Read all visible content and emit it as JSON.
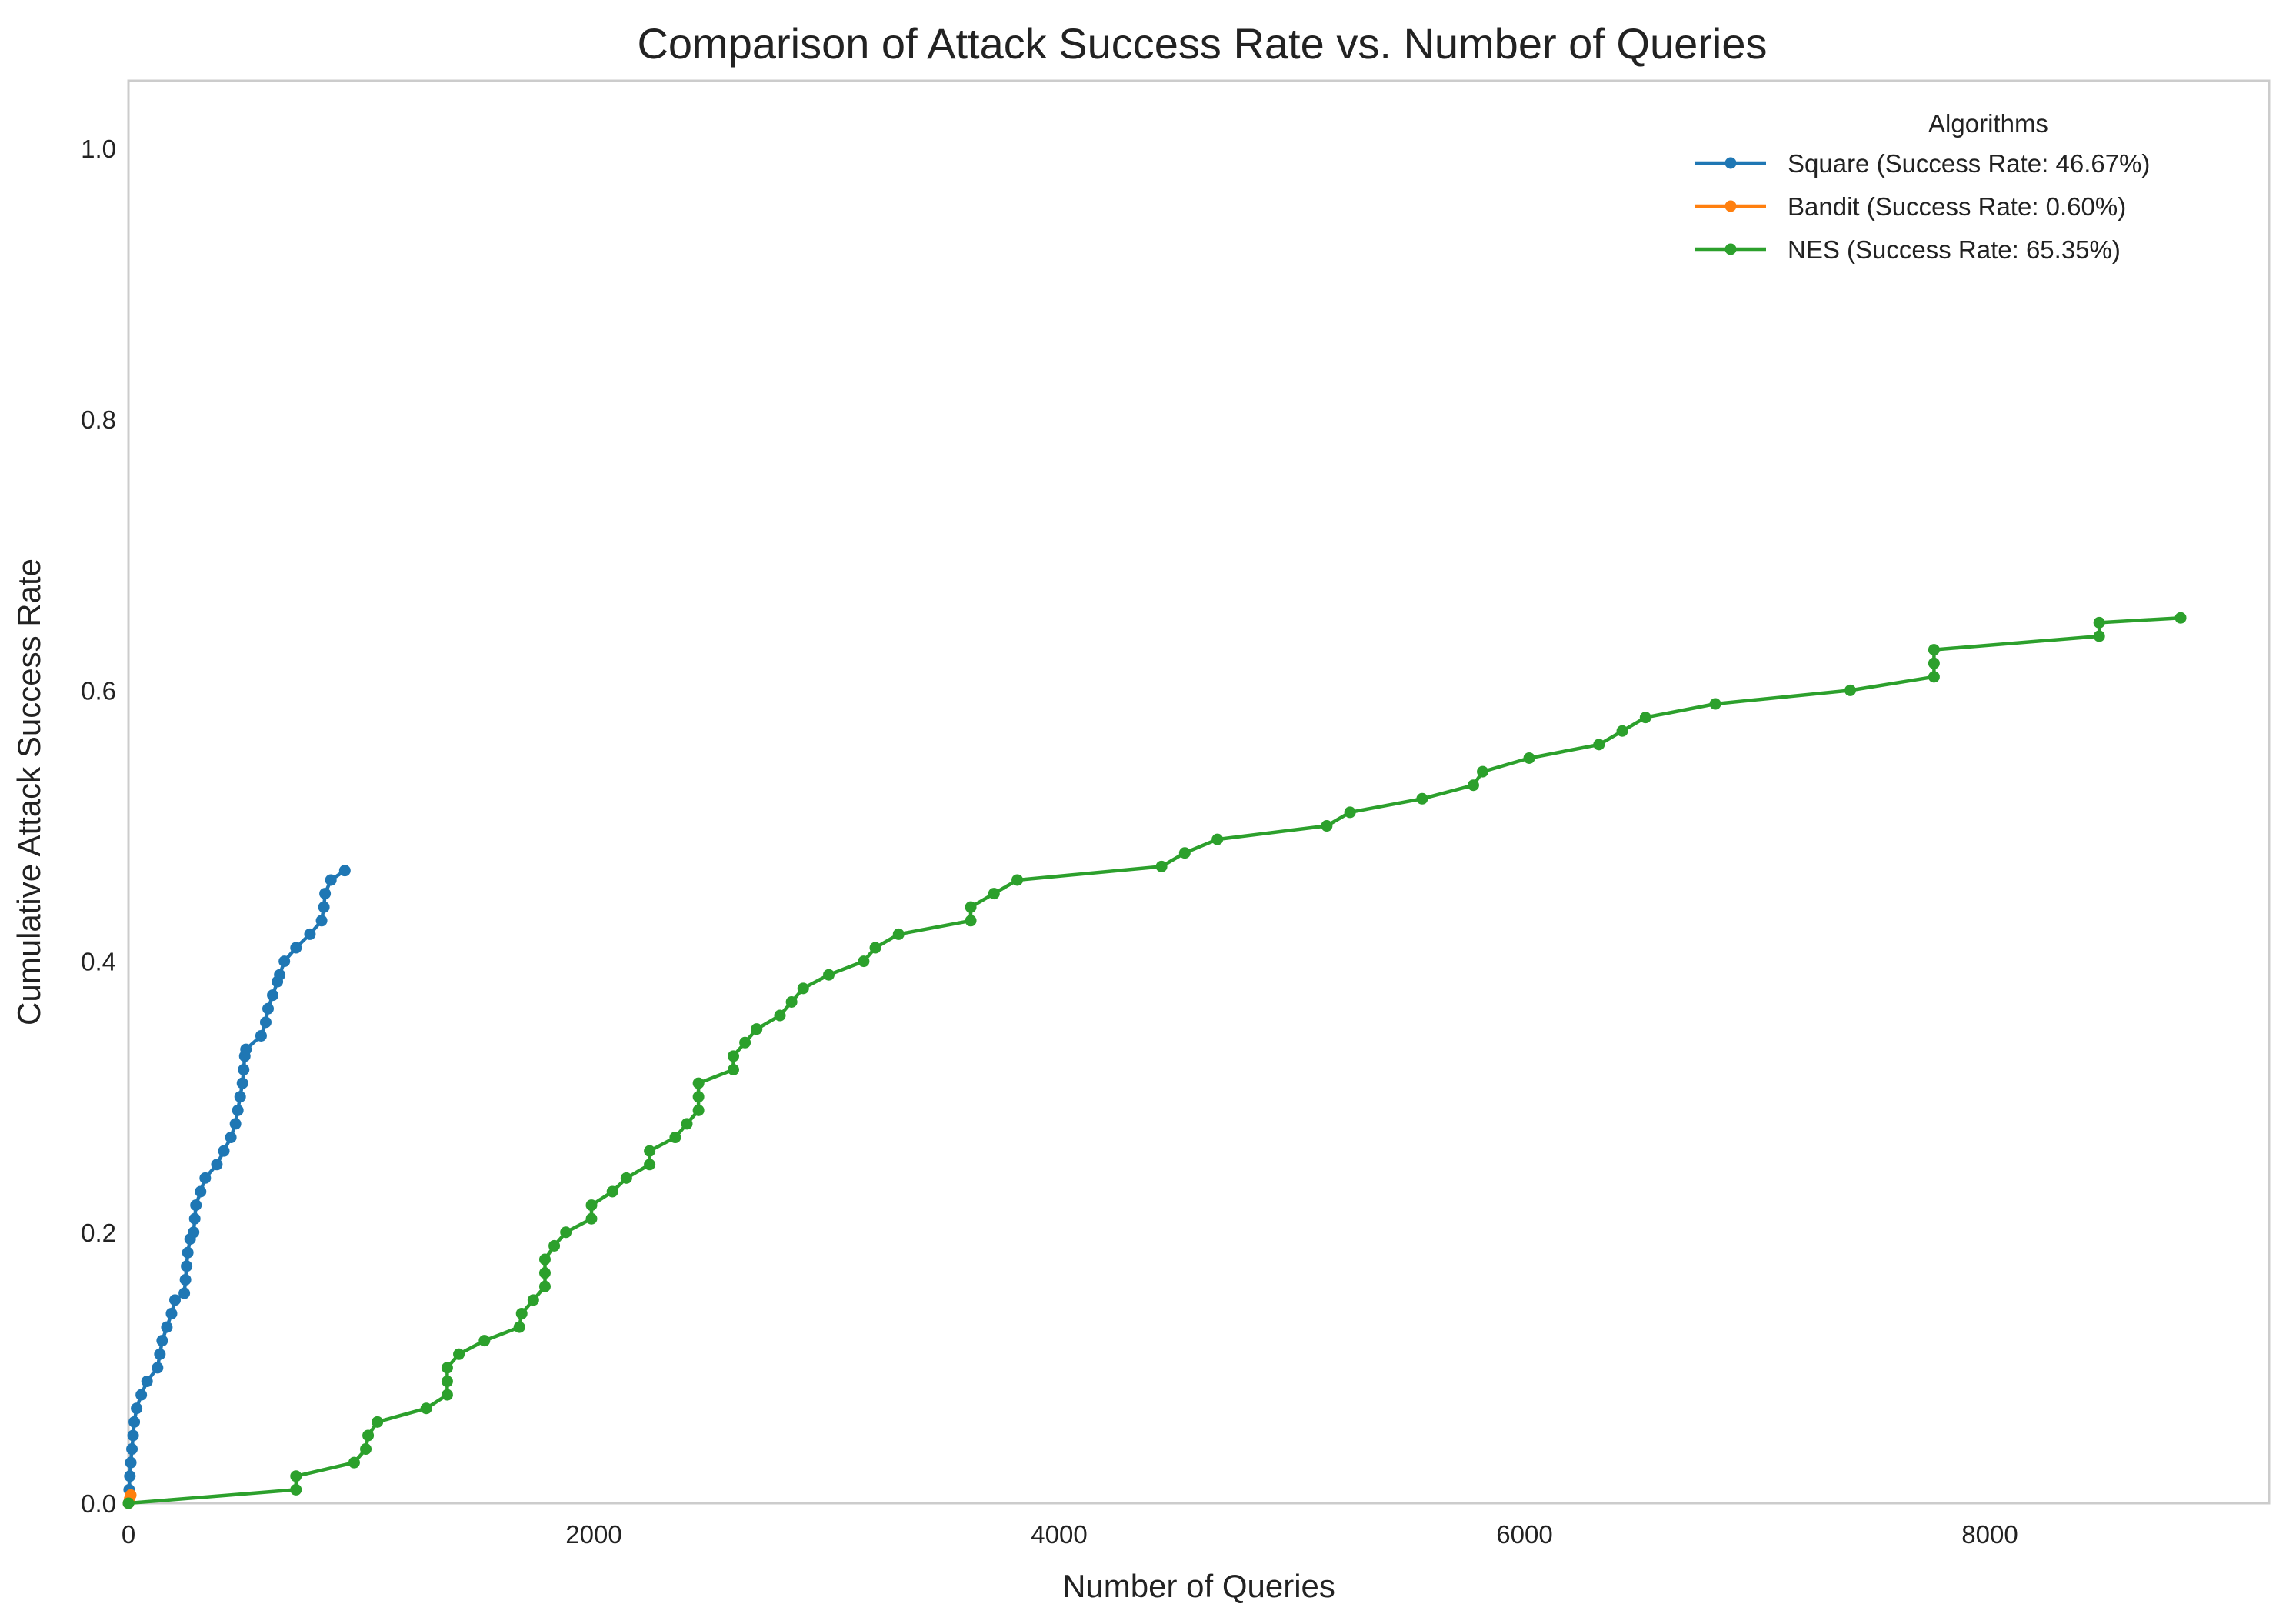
{
  "chart_data": {
    "type": "line",
    "title": "Comparison of Attack Success Rate vs. Number of Queries",
    "xlabel": "Number of Queries",
    "ylabel": "Cumulative Attack Success Rate",
    "xlim": [
      0,
      9200
    ],
    "ylim": [
      0,
      1.05
    ],
    "xticks": [
      0,
      2000,
      4000,
      6000,
      8000
    ],
    "xtick_labels": [
      "0",
      "2000",
      "4000",
      "6000",
      "8000"
    ],
    "yticks": [
      0.0,
      0.2,
      0.4,
      0.6,
      0.8,
      1.0
    ],
    "ytick_labels": [
      "0.0",
      "0.2",
      "0.4",
      "0.6",
      "0.8",
      "1.0"
    ],
    "grid": false,
    "legend": {
      "title": "Algorithms",
      "position": "top-right"
    },
    "series": [
      {
        "name": "Square (Success Rate: 46.67%)",
        "color": "#1f77b4",
        "points": [
          [
            0,
            0.0
          ],
          [
            3,
            0.01
          ],
          [
            6,
            0.02
          ],
          [
            10,
            0.03
          ],
          [
            15,
            0.04
          ],
          [
            20,
            0.05
          ],
          [
            25,
            0.06
          ],
          [
            35,
            0.07
          ],
          [
            55,
            0.08
          ],
          [
            80,
            0.09
          ],
          [
            125,
            0.1
          ],
          [
            135,
            0.11
          ],
          [
            145,
            0.12
          ],
          [
            165,
            0.13
          ],
          [
            185,
            0.14
          ],
          [
            200,
            0.15
          ],
          [
            240,
            0.155
          ],
          [
            245,
            0.165
          ],
          [
            250,
            0.175
          ],
          [
            255,
            0.185
          ],
          [
            265,
            0.195
          ],
          [
            280,
            0.2
          ],
          [
            285,
            0.21
          ],
          [
            290,
            0.22
          ],
          [
            310,
            0.23
          ],
          [
            330,
            0.24
          ],
          [
            380,
            0.25
          ],
          [
            410,
            0.26
          ],
          [
            440,
            0.27
          ],
          [
            460,
            0.28
          ],
          [
            470,
            0.29
          ],
          [
            480,
            0.3
          ],
          [
            490,
            0.31
          ],
          [
            495,
            0.32
          ],
          [
            500,
            0.33
          ],
          [
            505,
            0.335
          ],
          [
            570,
            0.345
          ],
          [
            590,
            0.355
          ],
          [
            600,
            0.365
          ],
          [
            620,
            0.375
          ],
          [
            640,
            0.385
          ],
          [
            650,
            0.39
          ],
          [
            670,
            0.4
          ],
          [
            720,
            0.41
          ],
          [
            780,
            0.42
          ],
          [
            830,
            0.43
          ],
          [
            840,
            0.44
          ],
          [
            845,
            0.45
          ],
          [
            870,
            0.46
          ],
          [
            930,
            0.467
          ]
        ]
      },
      {
        "name": "Bandit (Success Rate: 0.60%)",
        "color": "#ff7f0e",
        "points": [
          [
            0,
            0.0
          ],
          [
            5,
            0.003
          ],
          [
            10,
            0.006
          ]
        ]
      },
      {
        "name": "NES (Success Rate: 65.35%)",
        "color": "#2ca02c",
        "points": [
          [
            0,
            0.0
          ],
          [
            720,
            0.01
          ],
          [
            720,
            0.02
          ],
          [
            970,
            0.03
          ],
          [
            1020,
            0.04
          ],
          [
            1030,
            0.05
          ],
          [
            1070,
            0.06
          ],
          [
            1280,
            0.07
          ],
          [
            1370,
            0.08
          ],
          [
            1370,
            0.09
          ],
          [
            1370,
            0.1
          ],
          [
            1420,
            0.11
          ],
          [
            1530,
            0.12
          ],
          [
            1680,
            0.13
          ],
          [
            1690,
            0.14
          ],
          [
            1740,
            0.15
          ],
          [
            1790,
            0.16
          ],
          [
            1790,
            0.17
          ],
          [
            1790,
            0.18
          ],
          [
            1830,
            0.19
          ],
          [
            1880,
            0.2
          ],
          [
            1990,
            0.21
          ],
          [
            1990,
            0.22
          ],
          [
            2080,
            0.23
          ],
          [
            2140,
            0.24
          ],
          [
            2240,
            0.25
          ],
          [
            2240,
            0.26
          ],
          [
            2350,
            0.27
          ],
          [
            2400,
            0.28
          ],
          [
            2450,
            0.29
          ],
          [
            2450,
            0.3
          ],
          [
            2450,
            0.31
          ],
          [
            2600,
            0.32
          ],
          [
            2600,
            0.33
          ],
          [
            2650,
            0.34
          ],
          [
            2700,
            0.35
          ],
          [
            2800,
            0.36
          ],
          [
            2850,
            0.37
          ],
          [
            2900,
            0.38
          ],
          [
            3010,
            0.39
          ],
          [
            3160,
            0.4
          ],
          [
            3210,
            0.41
          ],
          [
            3310,
            0.42
          ],
          [
            3620,
            0.43
          ],
          [
            3620,
            0.44
          ],
          [
            3720,
            0.45
          ],
          [
            3820,
            0.46
          ],
          [
            4440,
            0.47
          ],
          [
            4540,
            0.48
          ],
          [
            4680,
            0.49
          ],
          [
            5150,
            0.5
          ],
          [
            5250,
            0.51
          ],
          [
            5560,
            0.52
          ],
          [
            5780,
            0.53
          ],
          [
            5820,
            0.54
          ],
          [
            6020,
            0.55
          ],
          [
            6320,
            0.56
          ],
          [
            6420,
            0.57
          ],
          [
            6520,
            0.58
          ],
          [
            6820,
            0.59
          ],
          [
            7400,
            0.6
          ],
          [
            7760,
            0.61
          ],
          [
            7760,
            0.62
          ],
          [
            7760,
            0.63
          ],
          [
            8470,
            0.64
          ],
          [
            8470,
            0.65
          ],
          [
            8820,
            0.6535
          ]
        ]
      }
    ]
  }
}
